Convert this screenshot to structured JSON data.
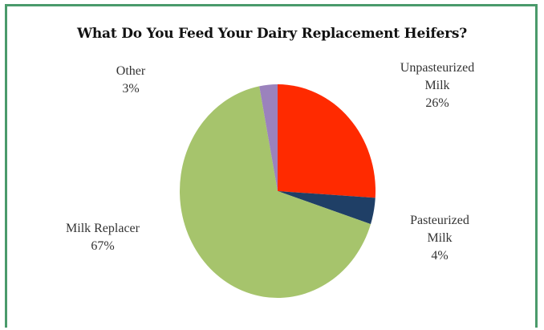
{
  "chart_data": {
    "type": "pie",
    "title": "What Do You Feed Your Dairy Replacement Heifers?",
    "slices": [
      {
        "label_lines": [
          "Unpasteurized",
          "Milk"
        ],
        "percent_label": "26%",
        "value": 26,
        "color": "#ff2a00"
      },
      {
        "label_lines": [
          "Pasteurized",
          "Milk"
        ],
        "percent_label": "4%",
        "value": 4,
        "color": "#1f3f66"
      },
      {
        "label_lines": [
          "Milk Replacer"
        ],
        "percent_label": "67%",
        "value": 67,
        "color": "#a6c46c"
      },
      {
        "label_lines": [
          "Other"
        ],
        "percent_label": "3%",
        "value": 3,
        "color": "#9b82bd"
      }
    ],
    "start_angle_deg": 0,
    "direction": "clockwise",
    "legend": "none"
  }
}
